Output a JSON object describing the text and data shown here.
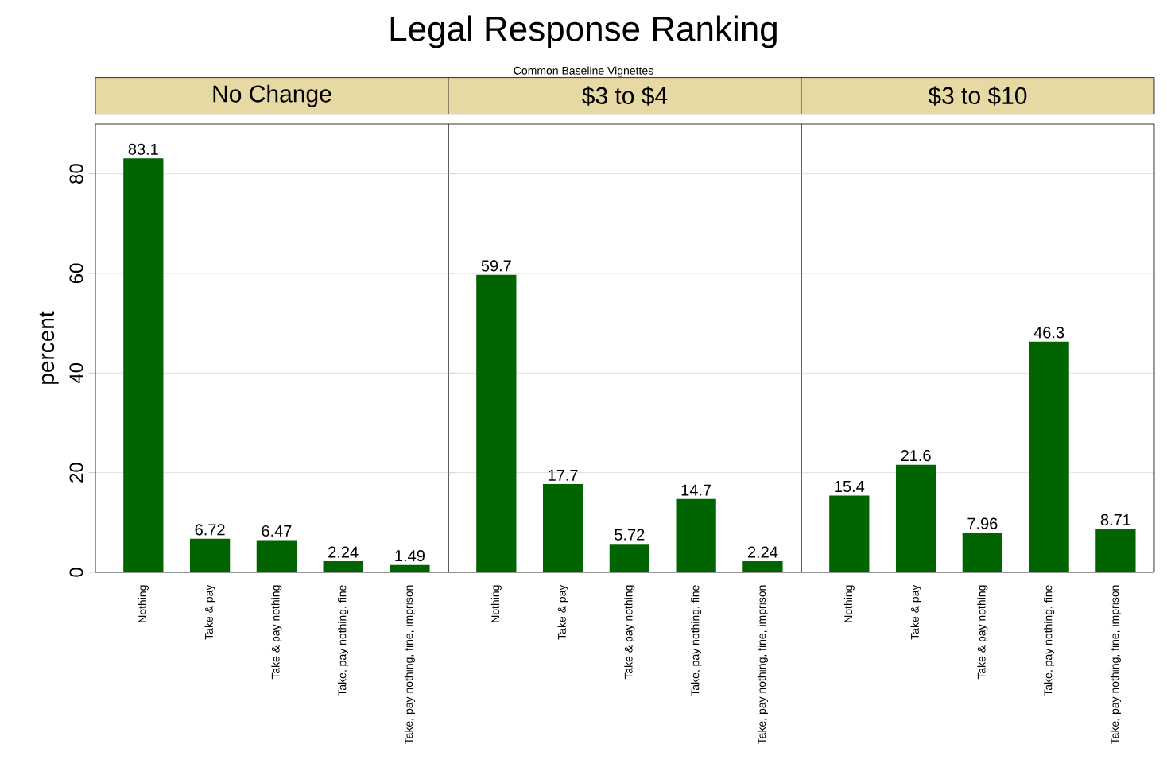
{
  "chart_data": [
    {
      "type": "bar",
      "title": "No Change",
      "annotations": [
        "Legal Response Ranking",
        "Common Baseline Vignettes"
      ],
      "ylabel": "percent",
      "categories": [
        "Nothing",
        "Take & pay",
        "Take & pay nothing",
        "Take, pay nothing, fine",
        "Take, pay nothing, fine, imprison"
      ],
      "values": [
        83.1,
        6.72,
        6.47,
        2.24,
        1.49
      ],
      "color": "#006400",
      "ylim": [
        0,
        90
      ],
      "yticks": [
        0,
        20,
        40,
        60,
        80
      ],
      "grid": "y",
      "data_labels": true
    },
    {
      "type": "bar",
      "title": "$3 to $4",
      "categories": [
        "Nothing",
        "Take & pay",
        "Take & pay nothing",
        "Take, pay nothing, fine",
        "Take, pay nothing, fine, imprison"
      ],
      "values": [
        59.7,
        17.7,
        5.72,
        14.7,
        2.24
      ],
      "color": "#006400",
      "ylim": [
        0,
        90
      ],
      "yticks": [
        0,
        20,
        40,
        60,
        80
      ],
      "grid": "y",
      "data_labels": true,
      "tick_labels": "x"
    },
    {
      "type": "bar",
      "title": "$3 to $10",
      "categories": [
        "Nothing",
        "Take & pay",
        "Take & pay nothing",
        "Take, pay nothing, fine",
        "Take, pay nothing, fine, imprison"
      ],
      "values": [
        15.4,
        21.6,
        7.96,
        46.3,
        8.71
      ],
      "color": "#006400",
      "ylim": [
        0,
        90
      ],
      "yticks": [
        0,
        20,
        40,
        60,
        80
      ],
      "grid": "y",
      "data_labels": true,
      "tick_labels": "x"
    }
  ]
}
